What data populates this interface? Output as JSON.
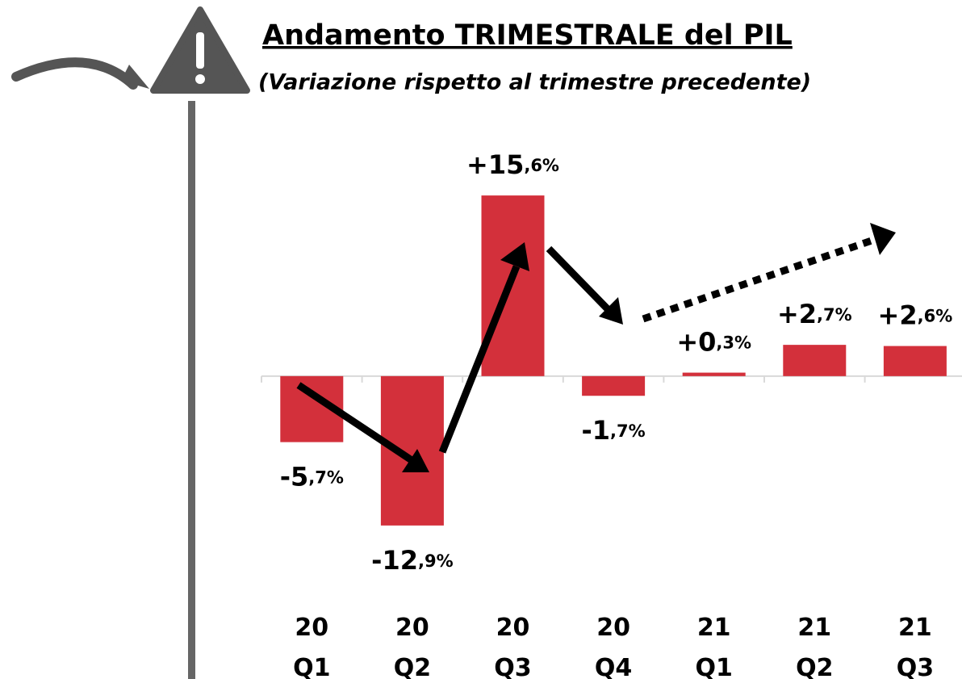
{
  "chart_data": {
    "type": "bar",
    "title": "Andamento TRIMESTRALE del PIL",
    "subtitle": "(Variazione rispetto al trimestre precedente)",
    "categories": [
      "20 Q1",
      "20 Q2",
      "20 Q3",
      "20 Q4",
      "21 Q1",
      "21 Q2",
      "21 Q3"
    ],
    "values": [
      -5.7,
      -12.9,
      15.6,
      -1.7,
      0.3,
      2.7,
      2.6
    ],
    "value_labels": [
      "-5,7%",
      "-12,9%",
      "+15,6%",
      "-1,7%",
      "+0,3%",
      "+2,7%",
      "+2,6%"
    ],
    "color": "#d3303b",
    "ylim": [
      -15,
      20
    ]
  }
}
